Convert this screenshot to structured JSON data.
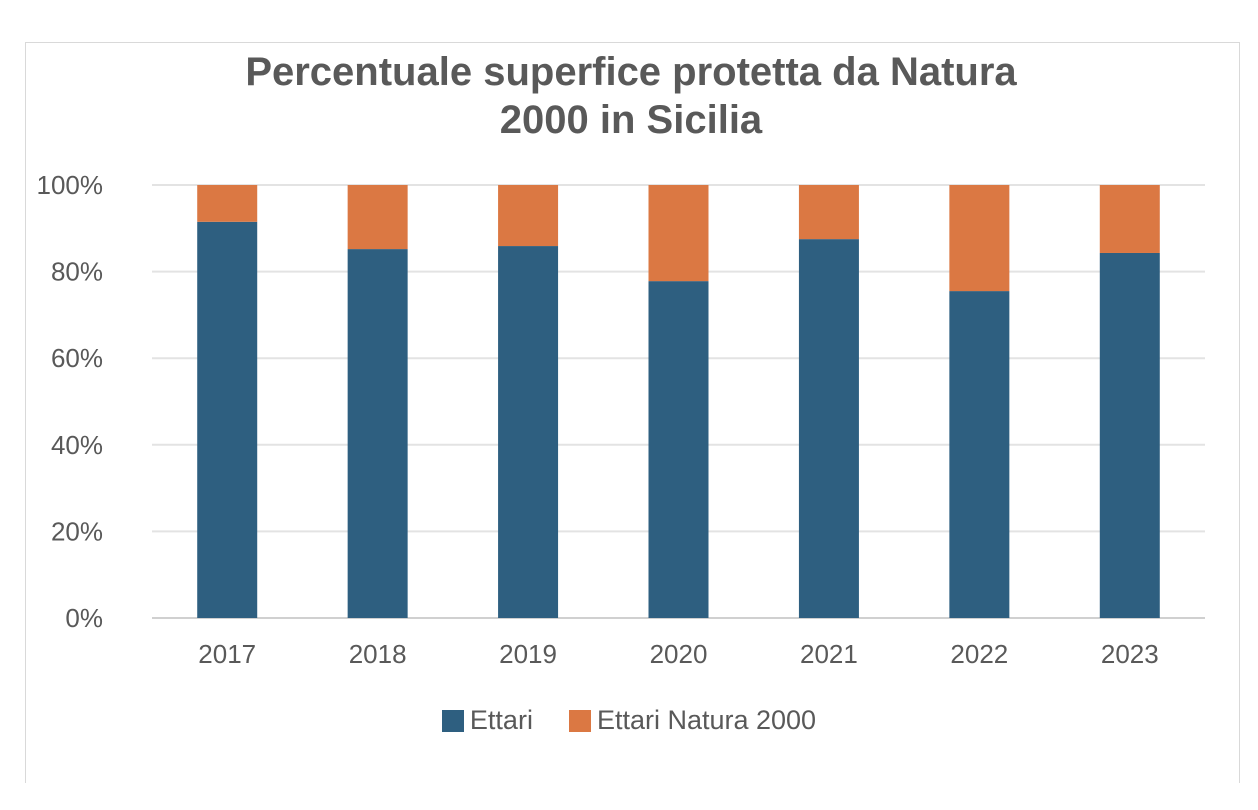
{
  "chart_data": {
    "type": "bar",
    "stacked": "percent",
    "title": "Percentuale superfice protetta da Natura 2000 in Sicilia",
    "title_lines": [
      "Percentuale superfice protetta da Natura",
      "2000 in Sicilia"
    ],
    "xlabel": "",
    "ylabel": "",
    "ylim": [
      0,
      100
    ],
    "yticks": [
      "0%",
      "20%",
      "40%",
      "60%",
      "80%",
      "100%"
    ],
    "grid": true,
    "legend_position": "bottom",
    "categories": [
      "2017",
      "2018",
      "2019",
      "2020",
      "2021",
      "2022",
      "2023"
    ],
    "series": [
      {
        "name": "Ettari",
        "color": "#2e5f80",
        "values": [
          91.5,
          85.2,
          85.9,
          77.8,
          87.5,
          75.5,
          84.3
        ]
      },
      {
        "name": "Ettari Natura 2000",
        "color": "#db7843",
        "values": [
          8.5,
          14.8,
          14.1,
          22.2,
          12.5,
          24.5,
          15.7
        ]
      }
    ]
  }
}
